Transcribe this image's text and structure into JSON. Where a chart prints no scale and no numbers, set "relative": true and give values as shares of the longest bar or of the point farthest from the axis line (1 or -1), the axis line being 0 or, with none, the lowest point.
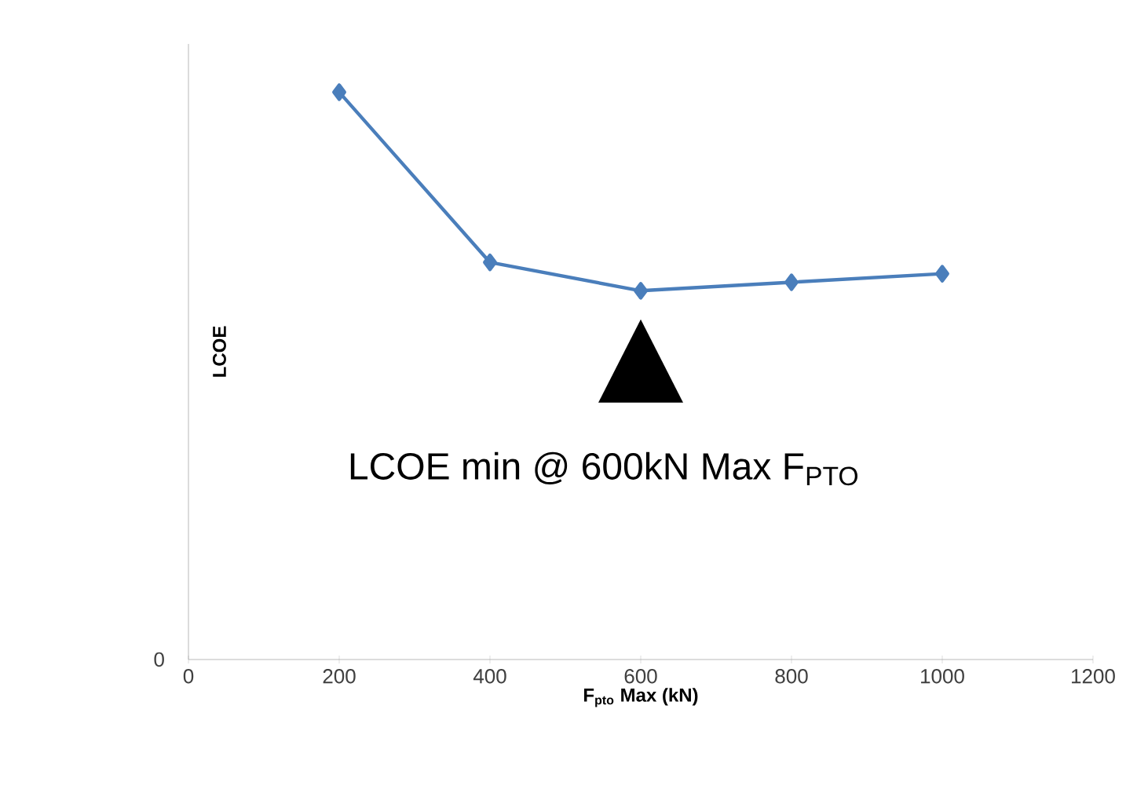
{
  "chart_data": {
    "type": "line",
    "relative": true,
    "xlabel": "F$_{pto}$ Max (kN)",
    "ylabel": "LCOE",
    "x": [
      200,
      400,
      600,
      800,
      1000
    ],
    "series": [
      {
        "color": "#4a7ebb",
        "values": [
          1,
          0.7,
          0.65,
          0.665,
          0.68
        ]
      }
    ],
    "xlim": [
      0,
      1200
    ],
    "xticks": [
      0,
      200,
      400,
      600,
      800,
      1000,
      1200
    ],
    "marker": "diamond",
    "line_style": "solid",
    "annotations": [
      "LCOE min @ 600kN Max F$_{PTO}$",
      "0"
    ]
  }
}
